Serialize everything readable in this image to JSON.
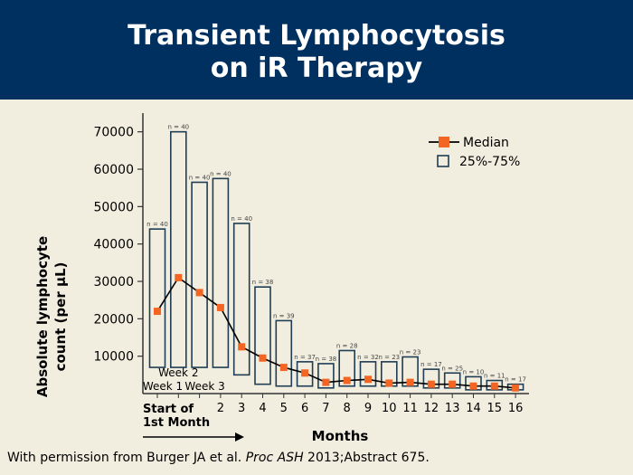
{
  "slide": {
    "title_line1": "Transient Lymphocytosis",
    "title_line2": "on iR Therapy",
    "footer_prefix": "With permission from Burger JA et al. ",
    "footer_journal": "Proc ASH",
    "footer_suffix": " 2013;Abstract 675."
  },
  "colors": {
    "header_bg": "#00305f",
    "box_stroke": "#1f3d54",
    "median": "#f26522",
    "background": "#f2eedf"
  },
  "chart_data": {
    "type": "box",
    "ylabel_line1": "Absolute lymphocyte",
    "ylabel_line2": "count (per µL)",
    "xlabel": "Months",
    "ylim": [
      0,
      75000
    ],
    "yticks": [
      10000,
      20000,
      30000,
      40000,
      50000,
      60000,
      70000
    ],
    "start_label_line1": "Start of",
    "start_label_line2": "1st Month",
    "week_labels": {
      "row1": "Week 2",
      "row2_left": "Week 1",
      "row2_right": "Week 3"
    },
    "x_tick_labels": [
      "",
      "",
      "",
      "2",
      "3",
      "4",
      "5",
      "6",
      "7",
      "8",
      "9",
      "10",
      "11",
      "12",
      "13",
      "14",
      "15",
      "16"
    ],
    "legend": {
      "median": "Median",
      "iqr": "25%-75%"
    },
    "points": [
      {
        "label": "Week 1",
        "n": "n = 40",
        "q1": 7000,
        "q3": 44000,
        "median": 22000
      },
      {
        "label": "Week 2",
        "n": "n = 40",
        "q1": 7000,
        "q3": 70000,
        "median": 31000
      },
      {
        "label": "Week 3",
        "n": "n = 40",
        "q1": 7000,
        "q3": 56500,
        "median": 27000
      },
      {
        "label": "2",
        "n": "n = 40",
        "q1": 7000,
        "q3": 57500,
        "median": 23000
      },
      {
        "label": "3",
        "n": "n = 40",
        "q1": 5000,
        "q3": 45500,
        "median": 12500
      },
      {
        "label": "4",
        "n": "n = 38",
        "q1": 2500,
        "q3": 28500,
        "median": 9500
      },
      {
        "label": "5",
        "n": "n = 39",
        "q1": 2000,
        "q3": 19500,
        "median": 7000
      },
      {
        "label": "6",
        "n": "n = 37",
        "q1": 2000,
        "q3": 8500,
        "median": 5500
      },
      {
        "label": "7",
        "n": "n = 38",
        "q1": 1500,
        "q3": 8000,
        "median": 3000
      },
      {
        "label": "8",
        "n": "n = 28",
        "q1": 2000,
        "q3": 11500,
        "median": 3500
      },
      {
        "label": "9",
        "n": "n = 32",
        "q1": 2000,
        "q3": 8500,
        "median": 3800
      },
      {
        "label": "10",
        "n": "n = 23",
        "q1": 2000,
        "q3": 8500,
        "median": 2800
      },
      {
        "label": "11",
        "n": "n = 23",
        "q1": 2000,
        "q3": 9800,
        "median": 3000
      },
      {
        "label": "12",
        "n": "n = 17",
        "q1": 1500,
        "q3": 6500,
        "median": 2500
      },
      {
        "label": "13",
        "n": "n = 25",
        "q1": 1500,
        "q3": 5500,
        "median": 2500
      },
      {
        "label": "14",
        "n": "n = 10",
        "q1": 1000,
        "q3": 4500,
        "median": 2000
      },
      {
        "label": "15",
        "n": "n = 11",
        "q1": 1000,
        "q3": 3500,
        "median": 2000
      },
      {
        "label": "16",
        "n": "n = 17",
        "q1": 1000,
        "q3": 2500,
        "median": 1500
      }
    ]
  }
}
